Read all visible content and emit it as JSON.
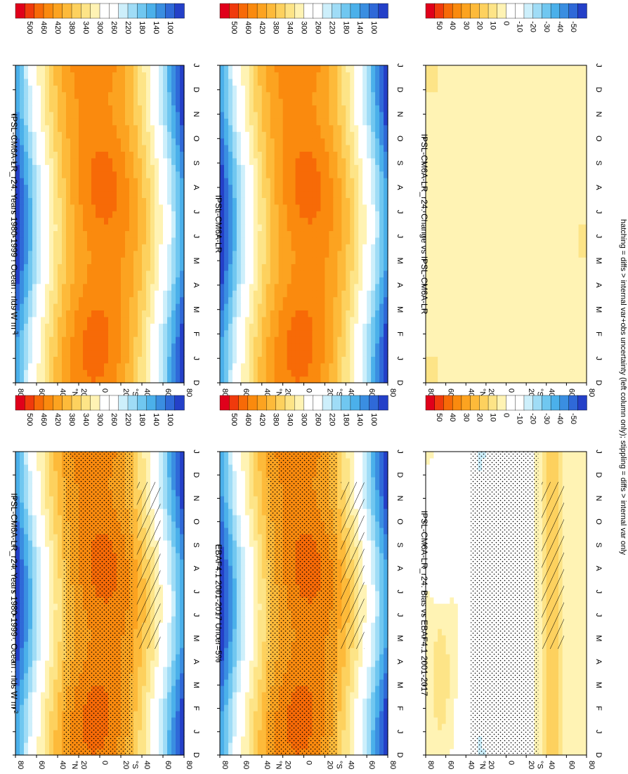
{
  "figure": {
    "footer": "hatching = diffs > internal var+obs uncertainty (left column only); stippling = diffs > internal var only"
  },
  "palettes": {
    "absolute": [
      "#e0001b",
      "#f03a0c",
      "#f76a07",
      "#fa8a0e",
      "#fca320",
      "#fdba3a",
      "#fdd15e",
      "#fde487",
      "#fff3b4",
      "#ffffff",
      "#ffffff",
      "#cdeffb",
      "#9fdcf6",
      "#70c7f0",
      "#4bb0ea",
      "#3a8ee1",
      "#2f69d8",
      "#2440c8"
    ],
    "difference": [
      "#e0001b",
      "#f03a0c",
      "#f76a07",
      "#fa8a0e",
      "#fca320",
      "#fdba3a",
      "#fdd15e",
      "#fde487",
      "#fff3b4",
      "#ffffff",
      "#ffffff",
      "#cdeffb",
      "#9fdcf6",
      "#70c7f0",
      "#4bb0ea",
      "#3a8ee1",
      "#2f69d8",
      "#2440c8"
    ]
  },
  "panels": [
    {
      "key": "p1",
      "title": "IPSL-CM6A-LR_r24: Years 1980-1999 : Ocean : rlds W m",
      "title_sup": "-2",
      "type": "abs",
      "stipple": true,
      "hatch": true
    },
    {
      "key": "p2",
      "title": "IPSL-CM6A-LR_r24: Years 1980-1999 : Ocean : rlds W m",
      "title_sup": "-2",
      "type": "abs",
      "stipple": false,
      "hatch": false
    },
    {
      "key": "p3",
      "title": "EBAF4.1 2001-2017 Uncer=5%",
      "title_sup": "",
      "type": "abs",
      "stipple": true,
      "hatch": true
    },
    {
      "key": "p4",
      "title": "IPSL-CM6A-LR",
      "title_sup": "",
      "type": "abs",
      "stipple": false,
      "hatch": false
    },
    {
      "key": "p5",
      "title": "IPSL-CM6A-LR_r24: Bias vs EBAF4.1 2001-2017",
      "title_sup": "",
      "type": "diff",
      "stipple": true,
      "hatch": true
    },
    {
      "key": "p6",
      "title": "IPSL-CM6A-LR_r24: Change vs IPSL-CM6A-LR",
      "title_sup": "",
      "type": "diffsmall",
      "stipple": false,
      "hatch": false
    }
  ],
  "axes": {
    "month_ticks": [
      "D",
      "J",
      "F",
      "M",
      "A",
      "M",
      "J",
      "J",
      "A",
      "S",
      "O",
      "N",
      "D",
      "J"
    ],
    "lat_ticks": [
      "80",
      "60",
      "40",
      "20",
      "0",
      "20",
      "40",
      "60",
      "80"
    ],
    "lat_hemi_labels": [
      "N",
      "S"
    ]
  },
  "colorbars": {
    "absolute_labels": [
      "500",
      "460",
      "420",
      "380",
      "340",
      "300",
      "260",
      "220",
      "180",
      "140",
      "100"
    ],
    "difference_labels": [
      "50",
      "40",
      "30",
      "20",
      "10",
      "0",
      "-10",
      "-20",
      "-30",
      "-40",
      "-50"
    ]
  },
  "chart_data": [
    {
      "type": "heatmap",
      "title": "IPSL-CM6A-LR_r24: Years 1980-1999 : Ocean : rlds W m-2",
      "x": "month (Dec–Jan)",
      "y": "latitude (80N–80S)",
      "range": [
        100,
        500
      ],
      "description_values": "tropical maximum ~420-460, polar minimum ~100-200"
    },
    {
      "type": "heatmap",
      "title": "IPSL-CM6A-LR_r24: Years 1980-1999 : Ocean : rlds W m-2",
      "range": [
        100,
        500
      ]
    },
    {
      "type": "heatmap",
      "title": "EBAF4.1 2001-2017 Uncer=5%",
      "range": [
        100,
        500
      ]
    },
    {
      "type": "heatmap",
      "title": "IPSL-CM6A-LR",
      "range": [
        100,
        500
      ]
    },
    {
      "type": "heatmap",
      "title": "IPSL-CM6A-LR_r24: Bias vs EBAF4.1 2001-2017",
      "range": [
        -50,
        50
      ]
    },
    {
      "type": "heatmap",
      "title": "IPSL-CM6A-LR_r24: Change vs IPSL-CM6A-LR",
      "range": [
        -50,
        50
      ]
    }
  ]
}
